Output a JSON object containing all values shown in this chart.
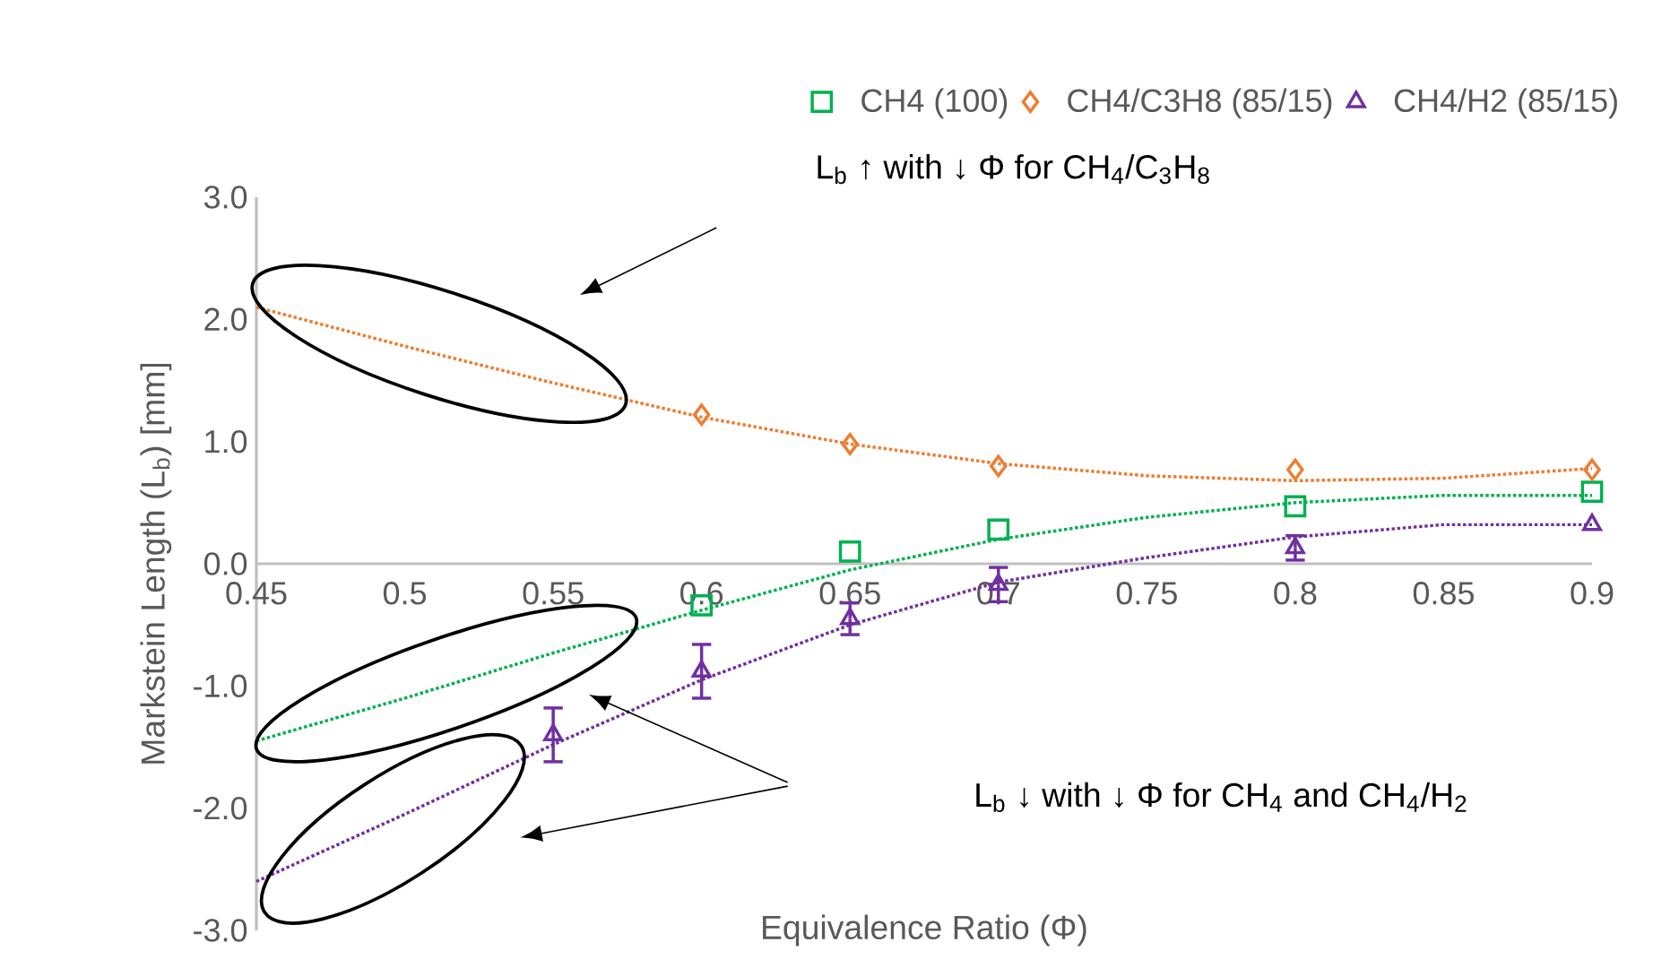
{
  "chart_data": {
    "type": "scatter",
    "xlabel": "Equivalence Ratio (Φ)",
    "ylabel": "Markstein Length (L$_{b}$) [mm]",
    "xlim": [
      0.45,
      0.9
    ],
    "ylim": [
      -3,
      3
    ],
    "xticks": [
      0.45,
      0.5,
      0.55,
      0.6,
      0.65,
      0.7,
      0.75,
      0.8,
      0.85,
      0.9
    ],
    "yticks": [
      {
        "value": -3,
        "label": "-3.0"
      },
      {
        "value": -2,
        "label": "-2.0"
      },
      {
        "value": -1,
        "label": "-1.0"
      },
      {
        "value": 0,
        "label": "0.0"
      },
      {
        "value": 1,
        "label": "1.0"
      },
      {
        "value": 2,
        "label": "2.0"
      },
      {
        "value": 3,
        "label": "3.0"
      }
    ],
    "legend": "top",
    "series": [
      {
        "name": "CH4 (100)",
        "color": "#00b050",
        "marker": "square",
        "x": [
          0.6,
          0.65,
          0.7,
          0.8,
          0.9
        ],
        "values": [
          -0.34,
          0.1,
          0.28,
          0.47,
          0.59
        ]
      },
      {
        "name": "CH4/C3H8 (85/15)",
        "color": "#ed7d31",
        "marker": "diamond",
        "x": [
          0.6,
          0.65,
          0.7,
          0.8,
          0.9
        ],
        "values": [
          1.22,
          0.98,
          0.8,
          0.77,
          0.77
        ]
      },
      {
        "name": "CH4/H2 (85/15)",
        "color": "#7030a0",
        "marker": "triangle",
        "x": [
          0.55,
          0.6,
          0.65,
          0.7,
          0.8,
          0.9
        ],
        "values": [
          -1.4,
          -0.88,
          -0.45,
          -0.17,
          0.13,
          0.32
        ],
        "errors": [
          0.22,
          0.22,
          0.13,
          0.14,
          0.1,
          null
        ]
      },
      {
        "type": "line",
        "line_style": "dotted",
        "marker": "none",
        "color": "#00b050",
        "x": [
          0.45,
          0.5,
          0.55,
          0.6,
          0.65,
          0.7,
          0.75,
          0.8,
          0.85,
          0.9
        ],
        "values": [
          -1.45,
          -1.1,
          -0.73,
          -0.38,
          -0.05,
          0.2,
          0.38,
          0.5,
          0.56,
          0.56
        ]
      },
      {
        "type": "line",
        "line_style": "dotted",
        "marker": "none",
        "color": "#ed7d31",
        "x": [
          0.45,
          0.5,
          0.55,
          0.6,
          0.65,
          0.7,
          0.75,
          0.8,
          0.85,
          0.9
        ],
        "values": [
          2.1,
          1.78,
          1.48,
          1.2,
          0.98,
          0.82,
          0.72,
          0.68,
          0.7,
          0.78
        ]
      },
      {
        "type": "line",
        "line_style": "dotted",
        "marker": "none",
        "color": "#7030a0",
        "x": [
          0.45,
          0.5,
          0.55,
          0.6,
          0.65,
          0.7,
          0.75,
          0.8,
          0.85,
          0.9
        ],
        "values": [
          -2.6,
          -2.05,
          -1.48,
          -0.95,
          -0.5,
          -0.15,
          0.05,
          0.22,
          0.32,
          0.32
        ]
      }
    ],
    "annotations": [
      "L$_{b}$ ↑ with ↓ Φ for CH$_{4}$/C$_{3}$H$_{8}$",
      "L$_{b}$ ↓ with ↓ Φ  for CH$_{4}$ and CH$_{4}$/H$_{2}$"
    ]
  }
}
